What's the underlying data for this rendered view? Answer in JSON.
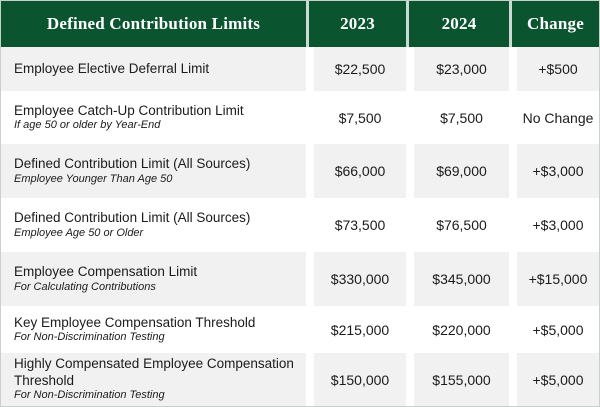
{
  "chart_data": {
    "type": "table",
    "title": "Defined Contribution Limits",
    "columns": [
      "2023",
      "2024",
      "Change"
    ],
    "rows": [
      {
        "label": "Employee Elective Deferral Limit",
        "sublabel": "",
        "v2023": "$22,500",
        "v2024": "$23,000",
        "change": "+$500"
      },
      {
        "label": "Employee Catch-Up Contribution Limit",
        "sublabel": "If age 50 or older by Year-End",
        "v2023": "$7,500",
        "v2024": "$7,500",
        "change": "No Change"
      },
      {
        "label": "Defined Contribution Limit (All Sources)",
        "sublabel": "Employee Younger Than Age 50",
        "v2023": "$66,000",
        "v2024": "$69,000",
        "change": "+$3,000"
      },
      {
        "label": "Defined Contribution Limit (All Sources)",
        "sublabel": "Employee Age 50 or Older",
        "v2023": "$73,500",
        "v2024": "$76,500",
        "change": "+$3,000"
      },
      {
        "label": "Employee Compensation Limit",
        "sublabel": "For Calculating Contributions",
        "v2023": "$330,000",
        "v2024": "$345,000",
        "change": "+$15,000"
      },
      {
        "label": "Key Employee Compensation Threshold",
        "sublabel": "For Non-Discrimination Testing",
        "v2023": "$215,000",
        "v2024": "$220,000",
        "change": "+$5,000"
      },
      {
        "label": "Highly Compensated Employee Compensation Threshold",
        "sublabel": "For Non-Discrimination Testing",
        "v2023": "$150,000",
        "v2024": "$155,000",
        "change": "+$5,000"
      }
    ],
    "layout": {
      "grid": "off",
      "header_position": "top",
      "value_alignment": "center"
    },
    "colors": {
      "header_bg": "#0a5430",
      "header_text": "#ffffff",
      "header_divider": "#ccdbd2",
      "row_alt_bg": "#f1f1f2",
      "row_bg": "#ffffff",
      "body_text": "#1b1b1b"
    }
  }
}
